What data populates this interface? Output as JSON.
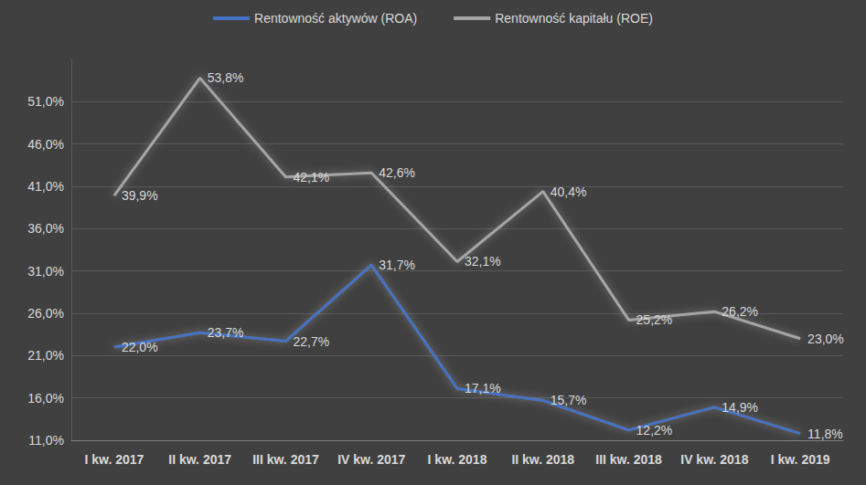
{
  "chart_data": {
    "type": "line",
    "categories": [
      "I kw. 2017",
      "II kw. 2017",
      "III kw. 2017",
      "IV kw. 2017",
      "I kw. 2018",
      "II kw. 2018",
      "III kw. 2018",
      "IV kw. 2018",
      "I kw. 2019"
    ],
    "series": [
      {
        "name": "Rentowność aktywów (ROA)",
        "color": "#4472c4",
        "values": [
          22.0,
          23.7,
          22.7,
          31.7,
          17.1,
          15.7,
          12.2,
          14.9,
          11.8
        ],
        "value_labels": [
          "22,0%",
          "23,7%",
          "22,7%",
          "31,7%",
          "17,1%",
          "15,7%",
          "12,2%",
          "14,9%",
          "11,8%"
        ]
      },
      {
        "name": "Rentowność kapitału (ROE)",
        "color": "#a5a5a5",
        "values": [
          39.9,
          53.8,
          42.1,
          42.6,
          32.1,
          40.4,
          25.2,
          26.2,
          23.0
        ],
        "value_labels": [
          "39,9%",
          "53,8%",
          "42,1%",
          "42,6%",
          "32,1%",
          "40,4%",
          "25,2%",
          "26,2%",
          "23,0%"
        ]
      }
    ],
    "ylim": [
      11,
      56
    ],
    "yticks": [
      {
        "value": 11,
        "label": "11,0%"
      },
      {
        "value": 16,
        "label": "16,0%"
      },
      {
        "value": 21,
        "label": "21,0%"
      },
      {
        "value": 26,
        "label": "26,0%"
      },
      {
        "value": 31,
        "label": "31,0%"
      },
      {
        "value": 36,
        "label": "36,0%"
      },
      {
        "value": 41,
        "label": "41,0%"
      },
      {
        "value": 46,
        "label": "46,0%"
      },
      {
        "value": 51,
        "label": "51,0%"
      }
    ],
    "grid": true,
    "legend": "top",
    "data_labels": true
  }
}
